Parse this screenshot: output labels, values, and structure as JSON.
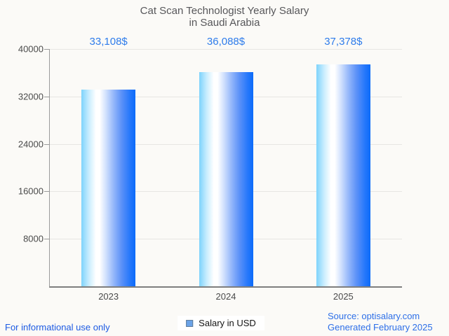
{
  "title": {
    "line1": "Cat Scan Technologist Yearly Salary",
    "line2": "in Saudi Arabia"
  },
  "legend": {
    "label": "Salary in USD"
  },
  "footer": {
    "left": "For informational use only",
    "source_line1": "Source: optisalary.com",
    "source_line2": "Generated February 2025"
  },
  "colors": {
    "value_label": "#2e7ceb",
    "bar_light": "#7dd3fc",
    "bar_dark": "#0b6bfa",
    "legend_fill": "#6ba3e8",
    "footer_left_text": "#1c5ae3",
    "source_text": "#2d6fe8",
    "title_text": "#57575a",
    "axis_text": "#4a4a4a"
  },
  "chart_data": {
    "type": "bar",
    "title": "Cat Scan Technologist Yearly Salary in Saudi Arabia",
    "categories": [
      "2023",
      "2024",
      "2025"
    ],
    "values": [
      33108,
      36088,
      37378
    ],
    "value_labels": [
      "33,108$",
      "36,088$",
      "37,378$"
    ],
    "series": [
      {
        "name": "Salary in USD",
        "values": [
          33108,
          36088,
          37378
        ]
      }
    ],
    "xlabel": "",
    "ylabel": "",
    "ylim": [
      0,
      40000
    ],
    "yticks": [
      8000,
      16000,
      24000,
      32000,
      40000
    ],
    "grid": true,
    "legend_position": "bottom"
  }
}
